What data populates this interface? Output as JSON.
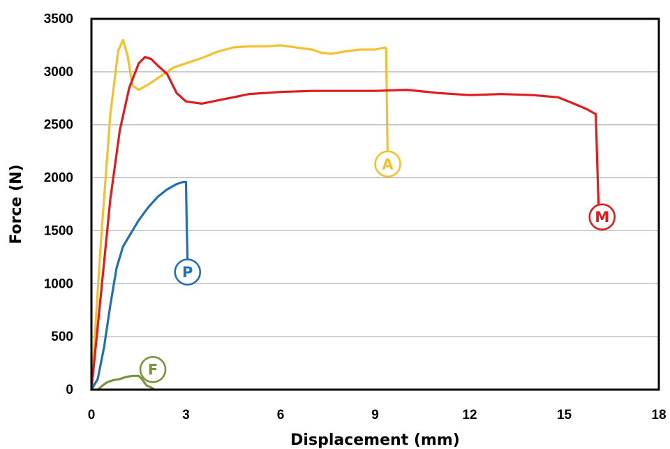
{
  "chart_data": {
    "type": "line",
    "title": "",
    "xlabel": "Displacement (mm)",
    "ylabel": "Force (N)",
    "xlim": [
      0,
      18
    ],
    "ylim": [
      0,
      3500
    ],
    "xticks": [
      0,
      3,
      6,
      9,
      12,
      15,
      18
    ],
    "xtick_labels": [
      "0",
      "3",
      "6",
      "9",
      "12",
      "15",
      "18"
    ],
    "yticks": [
      0,
      500,
      1000,
      1500,
      2000,
      2500,
      3000,
      3500
    ],
    "ytick_labels": [
      "0",
      "500",
      "1000",
      "1500",
      "2000",
      "2500",
      "3000",
      "3500"
    ],
    "grid": "horizontal",
    "series": [
      {
        "name": "A",
        "color": "#F2C12E",
        "x": [
          0,
          0.3,
          0.6,
          0.85,
          1.0,
          1.15,
          1.3,
          1.5,
          1.8,
          2.2,
          2.6,
          3.0,
          3.5,
          4.0,
          4.5,
          5.0,
          5.5,
          6.0,
          6.5,
          7.0,
          7.3,
          7.6,
          8.0,
          8.5,
          9.0,
          9.3,
          9.35,
          9.4
        ],
        "y": [
          0,
          1400,
          2600,
          3200,
          3300,
          3150,
          2870,
          2830,
          2880,
          2960,
          3040,
          3080,
          3130,
          3190,
          3230,
          3240,
          3240,
          3250,
          3230,
          3210,
          3180,
          3170,
          3190,
          3210,
          3210,
          3230,
          3220,
          2080
        ]
      },
      {
        "name": "M",
        "color": "#E31A1C",
        "x": [
          0,
          0.3,
          0.6,
          0.9,
          1.2,
          1.5,
          1.7,
          1.9,
          2.1,
          2.4,
          2.7,
          3.0,
          3.5,
          4.0,
          4.5,
          5.0,
          6.0,
          7.0,
          8.0,
          9.0,
          10.0,
          11.0,
          12.0,
          13.0,
          14.0,
          14.8,
          15.3,
          15.7,
          16.0,
          16.05,
          16.1
        ],
        "y": [
          0,
          900,
          1800,
          2450,
          2850,
          3080,
          3140,
          3120,
          3060,
          2980,
          2800,
          2720,
          2700,
          2730,
          2760,
          2790,
          2810,
          2820,
          2820,
          2820,
          2830,
          2800,
          2780,
          2790,
          2780,
          2760,
          2700,
          2650,
          2600,
          2100,
          1620
        ]
      },
      {
        "name": "P",
        "color": "#1F6FB5",
        "x": [
          0,
          0.2,
          0.4,
          0.6,
          0.8,
          1.0,
          1.2,
          1.5,
          1.8,
          2.1,
          2.4,
          2.7,
          2.9,
          3.0,
          3.02,
          3.05
        ],
        "y": [
          0,
          100,
          400,
          800,
          1150,
          1350,
          1450,
          1600,
          1720,
          1820,
          1890,
          1940,
          1960,
          1960,
          1600,
          1200
        ]
      },
      {
        "name": "F",
        "color": "#77933C",
        "x": [
          0.2,
          0.4,
          0.5,
          0.7,
          0.9,
          1.1,
          1.3,
          1.5,
          1.6,
          1.75,
          1.9,
          2.0
        ],
        "y": [
          0,
          50,
          70,
          90,
          100,
          120,
          130,
          130,
          100,
          40,
          20,
          0
        ]
      }
    ],
    "annotations": [
      {
        "text": "A",
        "x": 9.4,
        "y": 2130,
        "color": "#F2C12E"
      },
      {
        "text": "M",
        "x": 16.2,
        "y": 1630,
        "color": "#E31A1C"
      },
      {
        "text": "P",
        "x": 3.05,
        "y": 1110,
        "color": "#1F6FB5"
      },
      {
        "text": "F",
        "x": 1.95,
        "y": 190,
        "color": "#77933C"
      }
    ]
  }
}
